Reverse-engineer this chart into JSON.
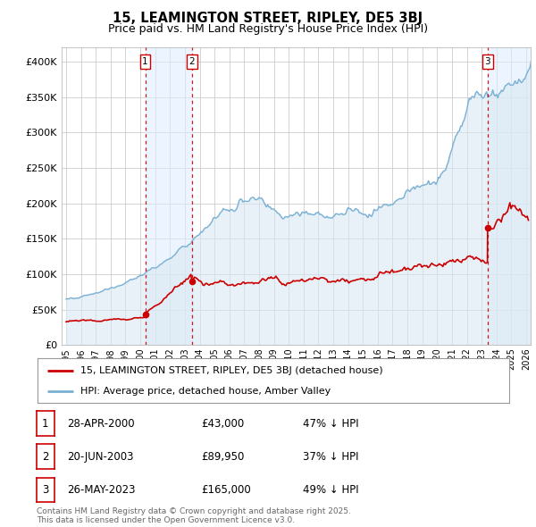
{
  "title": "15, LEAMINGTON STREET, RIPLEY, DE5 3BJ",
  "subtitle": "Price paid vs. HM Land Registry's House Price Index (HPI)",
  "title_fontsize": 10.5,
  "subtitle_fontsize": 9,
  "background_color": "#ffffff",
  "plot_bg_color": "#ffffff",
  "grid_color": "#cccccc",
  "red_color": "#cc0000",
  "blue_color": "#7ab0d4",
  "blue_fill_color": "#d8e8f3",
  "shade_color": "#ddeeff",
  "ylim": [
    0,
    420000
  ],
  "xlim_start": 1994.7,
  "xlim_end": 2026.3,
  "yticks": [
    0,
    50000,
    100000,
    150000,
    200000,
    250000,
    300000,
    350000,
    400000
  ],
  "ytick_labels": [
    "£0",
    "£50K",
    "£100K",
    "£150K",
    "£200K",
    "£250K",
    "£300K",
    "£350K",
    "£400K"
  ],
  "xtick_years": [
    1995,
    1996,
    1997,
    1998,
    1999,
    2000,
    2001,
    2002,
    2003,
    2004,
    2005,
    2006,
    2007,
    2008,
    2009,
    2010,
    2011,
    2012,
    2013,
    2014,
    2015,
    2016,
    2017,
    2018,
    2019,
    2020,
    2021,
    2022,
    2023,
    2024,
    2025,
    2026
  ],
  "sale_dates": [
    2000.33,
    2003.47,
    2023.4
  ],
  "sale_prices": [
    43000,
    89950,
    165000
  ],
  "sale_labels": [
    "1",
    "2",
    "3"
  ],
  "legend_label_red": "15, LEAMINGTON STREET, RIPLEY, DE5 3BJ (detached house)",
  "legend_label_blue": "HPI: Average price, detached house, Amber Valley",
  "table_data": [
    [
      "1",
      "28-APR-2000",
      "£43,000",
      "47% ↓ HPI"
    ],
    [
      "2",
      "20-JUN-2003",
      "£89,950",
      "37% ↓ HPI"
    ],
    [
      "3",
      "26-MAY-2023",
      "£165,000",
      "49% ↓ HPI"
    ]
  ],
  "footnote": "Contains HM Land Registry data © Crown copyright and database right 2025.\nThis data is licensed under the Open Government Licence v3.0."
}
